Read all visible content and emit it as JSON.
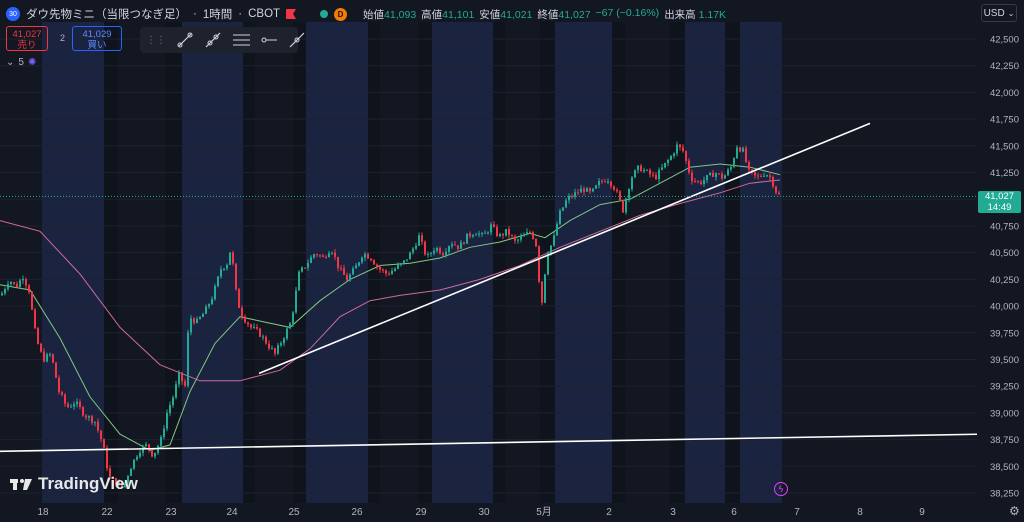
{
  "header": {
    "symbol_badge": "30",
    "symbol_name": "ダウ先物ミニ（当限つなぎ足）",
    "interval": "1時間",
    "exchange": "CBOT",
    "d_badge": "D",
    "ohlc": {
      "open_label": "始値",
      "open": "41,093",
      "high_label": "高値",
      "high": "41,101",
      "low_label": "安値",
      "low": "41,021",
      "close_label": "終値",
      "close": "41,027",
      "change": "−67 (−0.16%)",
      "volume_label": "出来高",
      "volume": "1.17K"
    }
  },
  "trade": {
    "sell_price": "41,027",
    "sell_label": "売り",
    "spread": "2",
    "buy_price": "41,029",
    "buy_label": "買い"
  },
  "drawing_tools": [
    "trend-line-icon",
    "ray-icon",
    "parallel-channel-icon",
    "horizontal-ray-icon",
    "extended-line-icon"
  ],
  "indicator": {
    "label": "5"
  },
  "currency": "USD",
  "logo_text": "TradingView",
  "last_price": {
    "value": "41,027",
    "countdown": "14:49"
  },
  "colors": {
    "background": "#131722",
    "session_highlight": "#1a2340",
    "up": "#22ab94",
    "down": "#f23645",
    "ma_short": "#81c784",
    "ma_long": "#d06a9a",
    "trendline": "#ffffff"
  },
  "chart_data": {
    "type": "candlestick",
    "y_axis_ticks": [
      38250,
      38500,
      38750,
      39000,
      39250,
      39500,
      39750,
      40000,
      40250,
      40500,
      40750,
      41000,
      41250,
      41500,
      41750,
      42000,
      42250,
      42500
    ],
    "x_axis_ticks": [
      "18",
      "22",
      "23",
      "24",
      "25",
      "26",
      "29",
      "30",
      "5月",
      "2",
      "3",
      "6",
      "7",
      "8",
      "9"
    ],
    "ylim": [
      38200,
      42600
    ],
    "price_path": [
      [
        0,
        40100
      ],
      [
        8,
        40250
      ],
      [
        15,
        40180
      ],
      [
        22,
        40280
      ],
      [
        28,
        40150
      ],
      [
        35,
        39700
      ],
      [
        42,
        39500
      ],
      [
        50,
        39550
      ],
      [
        58,
        39200
      ],
      [
        66,
        39050
      ],
      [
        74,
        39100
      ],
      [
        84,
        38980
      ],
      [
        94,
        38920
      ],
      [
        102,
        38700
      ],
      [
        108,
        38400
      ],
      [
        115,
        38350
      ],
      [
        122,
        38300
      ],
      [
        130,
        38500
      ],
      [
        138,
        38650
      ],
      [
        146,
        38700
      ],
      [
        152,
        38600
      ],
      [
        160,
        38750
      ],
      [
        166,
        39000
      ],
      [
        172,
        39150
      ],
      [
        178,
        39350
      ],
      [
        184,
        39250
      ],
      [
        188,
        39900
      ],
      [
        196,
        39850
      ],
      [
        204,
        39950
      ],
      [
        212,
        40100
      ],
      [
        220,
        40350
      ],
      [
        226,
        40400
      ],
      [
        230,
        40550
      ],
      [
        236,
        40050
      ],
      [
        242,
        39900
      ],
      [
        250,
        39800
      ],
      [
        258,
        39750
      ],
      [
        266,
        39650
      ],
      [
        274,
        39550
      ],
      [
        282,
        39700
      ],
      [
        290,
        39850
      ],
      [
        298,
        40300
      ],
      [
        306,
        40400
      ],
      [
        314,
        40500
      ],
      [
        322,
        40450
      ],
      [
        330,
        40550
      ],
      [
        338,
        40350
      ],
      [
        346,
        40250
      ],
      [
        354,
        40350
      ],
      [
        362,
        40500
      ],
      [
        370,
        40450
      ],
      [
        378,
        40350
      ],
      [
        386,
        40300
      ],
      [
        394,
        40350
      ],
      [
        402,
        40400
      ],
      [
        410,
        40500
      ],
      [
        418,
        40650
      ],
      [
        426,
        40450
      ],
      [
        434,
        40550
      ],
      [
        442,
        40500
      ],
      [
        450,
        40600
      ],
      [
        458,
        40550
      ],
      [
        466,
        40650
      ],
      [
        474,
        40700
      ],
      [
        482,
        40650
      ],
      [
        490,
        40750
      ],
      [
        498,
        40650
      ],
      [
        506,
        40700
      ],
      [
        514,
        40600
      ],
      [
        522,
        40650
      ],
      [
        530,
        40700
      ],
      [
        536,
        40550
      ],
      [
        540,
        39950
      ],
      [
        546,
        40500
      ],
      [
        552,
        40600
      ],
      [
        558,
        40850
      ],
      [
        566,
        41000
      ],
      [
        574,
        41050
      ],
      [
        582,
        41100
      ],
      [
        590,
        41050
      ],
      [
        598,
        41150
      ],
      [
        606,
        41200
      ],
      [
        614,
        41100
      ],
      [
        622,
        40900
      ],
      [
        630,
        41200
      ],
      [
        638,
        41300
      ],
      [
        646,
        41250
      ],
      [
        654,
        41200
      ],
      [
        662,
        41300
      ],
      [
        670,
        41400
      ],
      [
        676,
        41500
      ],
      [
        682,
        41450
      ],
      [
        690,
        41200
      ],
      [
        698,
        41150
      ],
      [
        706,
        41200
      ],
      [
        714,
        41250
      ],
      [
        722,
        41200
      ],
      [
        730,
        41300
      ],
      [
        736,
        41500
      ],
      [
        742,
        41450
      ],
      [
        748,
        41250
      ],
      [
        756,
        41200
      ],
      [
        764,
        41250
      ],
      [
        770,
        41200
      ],
      [
        776,
        41050
      ],
      [
        780,
        41027
      ]
    ],
    "ma_short": [
      [
        0,
        40200
      ],
      [
        30,
        40150
      ],
      [
        60,
        39700
      ],
      [
        90,
        39150
      ],
      [
        120,
        38800
      ],
      [
        150,
        38650
      ],
      [
        170,
        38700
      ],
      [
        190,
        39200
      ],
      [
        215,
        39650
      ],
      [
        240,
        39900
      ],
      [
        265,
        39850
      ],
      [
        290,
        39800
      ],
      [
        320,
        40050
      ],
      [
        350,
        40250
      ],
      [
        380,
        40380
      ],
      [
        410,
        40400
      ],
      [
        440,
        40450
      ],
      [
        470,
        40550
      ],
      [
        500,
        40600
      ],
      [
        530,
        40680
      ],
      [
        545,
        40640
      ],
      [
        570,
        40800
      ],
      [
        600,
        40950
      ],
      [
        630,
        41000
      ],
      [
        660,
        41150
      ],
      [
        690,
        41300
      ],
      [
        720,
        41330
      ],
      [
        750,
        41300
      ],
      [
        780,
        41230
      ]
    ],
    "ma_long": [
      [
        0,
        40800
      ],
      [
        40,
        40700
      ],
      [
        80,
        40300
      ],
      [
        120,
        39800
      ],
      [
        160,
        39450
      ],
      [
        200,
        39300
      ],
      [
        240,
        39300
      ],
      [
        280,
        39400
      ],
      [
        310,
        39600
      ],
      [
        340,
        39900
      ],
      [
        370,
        40050
      ],
      [
        400,
        40100
      ],
      [
        440,
        40150
      ],
      [
        480,
        40250
      ],
      [
        520,
        40380
      ],
      [
        560,
        40550
      ],
      [
        600,
        40700
      ],
      [
        640,
        40850
      ],
      [
        680,
        40960
      ],
      [
        720,
        41060
      ],
      [
        750,
        41150
      ],
      [
        780,
        41180
      ]
    ],
    "trendlines": [
      {
        "from": [
          259,
          39370
        ],
        "to": [
          870,
          41710
        ]
      },
      {
        "from": [
          0,
          38640
        ],
        "to": [
          977,
          38800
        ]
      }
    ],
    "session_bands": [
      [
        42,
        104
      ],
      [
        182,
        243
      ],
      [
        306,
        368
      ],
      [
        432,
        493
      ],
      [
        555,
        625
      ],
      [
        685,
        782
      ]
    ],
    "last_price": 41027
  }
}
